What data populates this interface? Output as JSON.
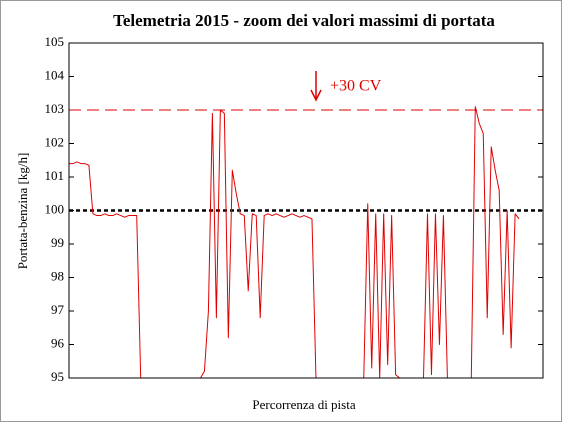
{
  "chart_data": {
    "type": "line",
    "title": "Telemetria 2015 - zoom dei valori massimi di portata",
    "x_label": "Percorrenza di pista",
    "y_label": "Portata-benzina  [kg/h]",
    "ylim": [
      95,
      105
    ],
    "yticks": [
      95,
      96,
      97,
      98,
      99,
      100,
      101,
      102,
      103,
      104,
      105
    ],
    "series": [
      {
        "color": "#e00000",
        "values": [
          101.4,
          101.4,
          101.45,
          101.4,
          101.4,
          101.35,
          99.9,
          99.85,
          99.85,
          99.9,
          99.85,
          99.85,
          99.9,
          99.85,
          99.8,
          99.85,
          99.85,
          99.85,
          95,
          95,
          95,
          95,
          95,
          95,
          95,
          95,
          95,
          95,
          95,
          95,
          95,
          95,
          95,
          95,
          95.2,
          97,
          102.9,
          96.8,
          103,
          102.9,
          96.2,
          101.2,
          100.5,
          99.9,
          99.85,
          97.6,
          99.9,
          99.85,
          96.8,
          99.85,
          99.9,
          99.85,
          99.9,
          99.85,
          99.8,
          99.85,
          99.9,
          99.85,
          99.8,
          99.85,
          99.8,
          99.75,
          95,
          95,
          95,
          95,
          95,
          95,
          95,
          95,
          95,
          95,
          95,
          95,
          95,
          100.2,
          95.3,
          99.9,
          95,
          99.9,
          95.4,
          99.85,
          95.1,
          95,
          95,
          95,
          95,
          95,
          95,
          95,
          99.9,
          95.1,
          99.9,
          96,
          99.85,
          95,
          95,
          95,
          95,
          95,
          95,
          95,
          103.1,
          102.6,
          102.3,
          96.8,
          101.9,
          101.2,
          100.6,
          96.3,
          100,
          95.9,
          99.9,
          99.75,
          null,
          null,
          null,
          null,
          null,
          null
        ]
      }
    ],
    "reference_lines": [
      {
        "value": 103,
        "color": "#e00000",
        "style": "dashed"
      },
      {
        "value": 100,
        "color": "#000000",
        "style": "dotted"
      }
    ],
    "annotation": {
      "text": "+30 CV",
      "color": "#e00000"
    }
  }
}
